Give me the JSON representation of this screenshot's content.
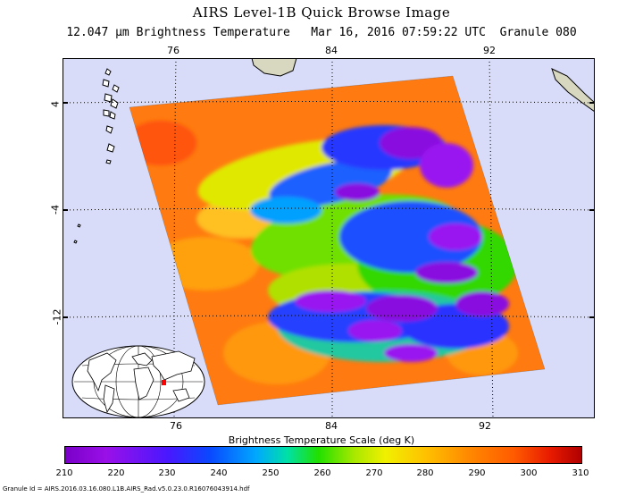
{
  "title": "AIRS Level-1B Quick Browse Image",
  "subtitle": "12.047 μm Brightness Temperature   Mar 16, 2016 07:59:22 UTC  Granule 080",
  "map": {
    "lon_ticks": [
      "76",
      "84",
      "92"
    ],
    "lat_ticks": [
      "4",
      "-4",
      "-12"
    ],
    "ocean_color": "#d8dcf8",
    "land_color": "#d8d8c0"
  },
  "colorbar": {
    "label": "Brightness Temperature Scale (deg K)",
    "ticks": [
      "210",
      "220",
      "230",
      "240",
      "250",
      "260",
      "270",
      "280",
      "290",
      "300",
      "310"
    ]
  },
  "granule_id": "Granule Id = AIRS.2016.03.16.080.L1B.AIRS_Rad.v5.0.23.0.R16076043914.hdf"
}
